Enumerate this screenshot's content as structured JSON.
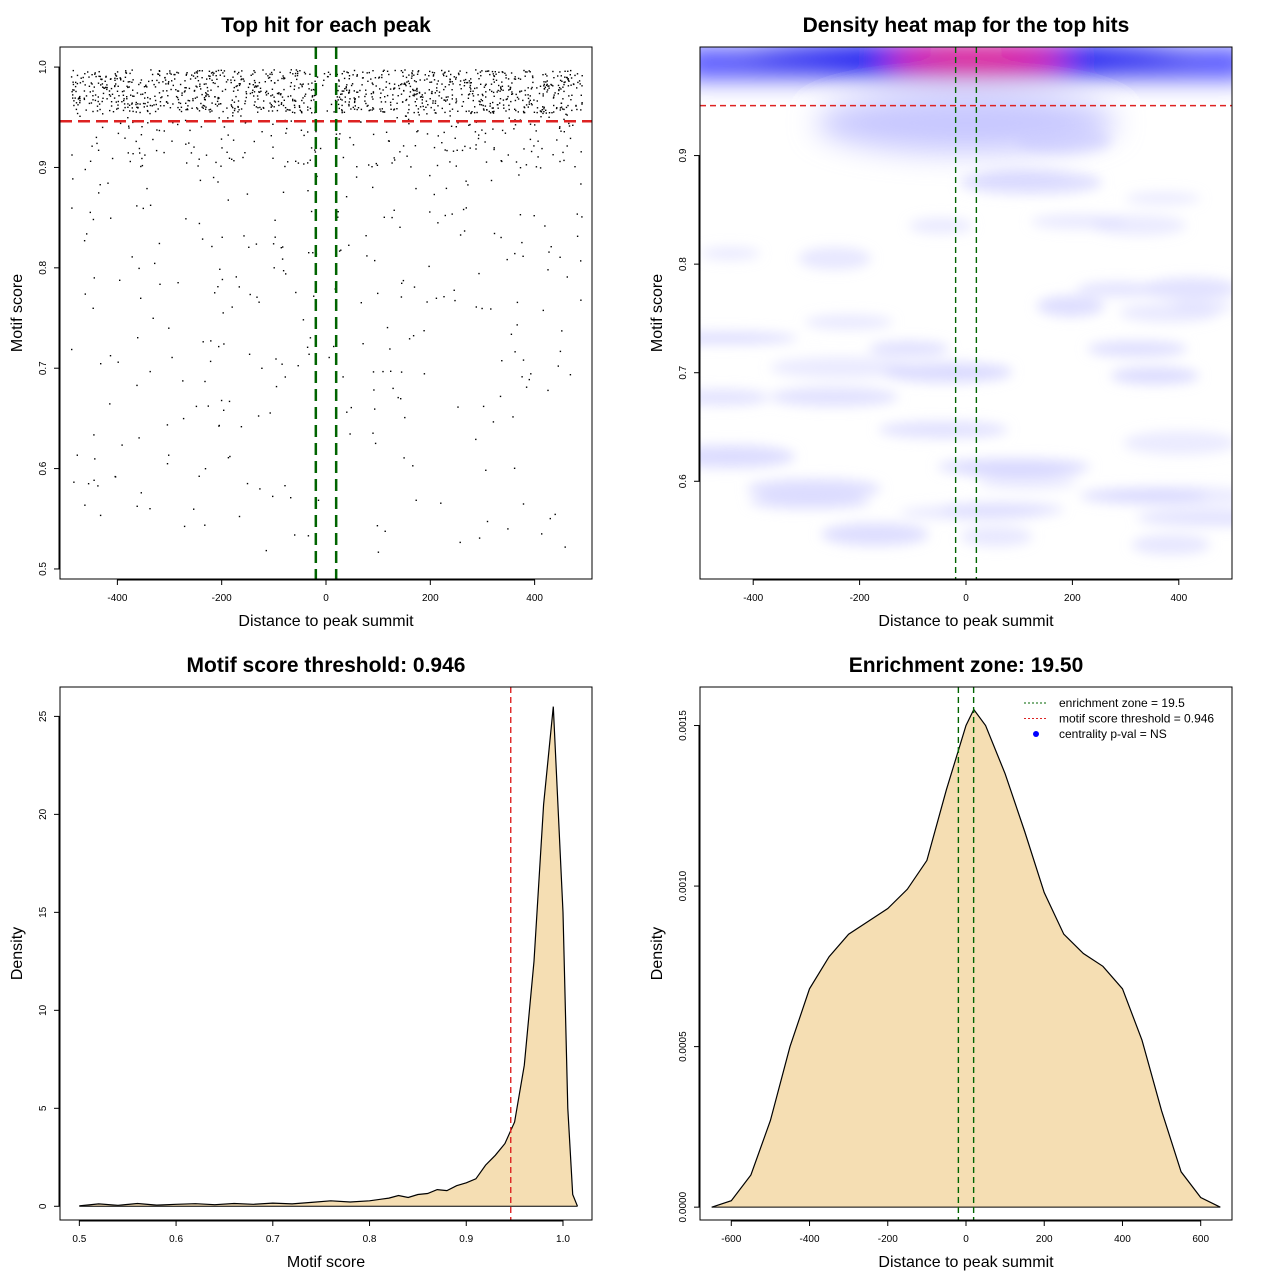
{
  "chart_data": [
    {
      "type": "scatter",
      "title": "Top hit for each peak",
      "xlabel": "Distance to peak summit",
      "ylabel": "Motif score",
      "xlim": [
        -510,
        510
      ],
      "ylim": [
        0.49,
        1.02
      ],
      "xticks": [
        -400,
        -200,
        0,
        200,
        400
      ],
      "yticks": [
        0.5,
        0.6,
        0.7,
        0.8,
        0.9,
        1.0
      ],
      "ytick_labels": [
        "0.5",
        "0.6",
        "0.7",
        "0.8",
        "0.9",
        "1.0"
      ],
      "hlines": [
        {
          "y": 0.946,
          "color": "#dd2222",
          "style": "dashed"
        }
      ],
      "vlines": [
        {
          "x": -19.5,
          "color": "#006400",
          "style": "dashed"
        },
        {
          "x": 19.5,
          "color": "#006400",
          "style": "dashed"
        }
      ],
      "point_color": "#000000"
    },
    {
      "type": "heatmap",
      "title": "Density heat map for the top hits",
      "xlabel": "Distance to peak summit",
      "ylabel": "Motif score",
      "xlim": [
        -500,
        500
      ],
      "ylim": [
        0.51,
        1.0
      ],
      "xticks": [
        -400,
        -200,
        0,
        200,
        400
      ],
      "yticks": [
        0.6,
        0.7,
        0.8,
        0.9
      ],
      "ytick_labels": [
        "0.6",
        "0.7",
        "0.8",
        "0.9"
      ],
      "hlines": [
        {
          "y": 0.946,
          "color": "#dd2222",
          "style": "dashed"
        }
      ],
      "vlines": [
        {
          "x": -19.5,
          "color": "#006400",
          "style": "dashed"
        },
        {
          "x": 19.5,
          "color": "#006400",
          "style": "dashed"
        }
      ],
      "colors": {
        "low": "#ffffff",
        "mid": "#0000ff",
        "high": "#ff0000"
      }
    },
    {
      "type": "area",
      "title": "Motif score threshold: 0.946",
      "xlabel": "Motif score",
      "ylabel": "Density",
      "xlim": [
        0.48,
        1.03
      ],
      "ylim": [
        -0.7,
        26.5
      ],
      "xticks": [
        0.5,
        0.6,
        0.7,
        0.8,
        0.9,
        1.0
      ],
      "xtick_labels": [
        "0.5",
        "0.6",
        "0.7",
        "0.8",
        "0.9",
        "1.0"
      ],
      "yticks": [
        0,
        5,
        10,
        15,
        20,
        25
      ],
      "ytick_labels": [
        "0",
        "5",
        "10",
        "15",
        "20",
        "25"
      ],
      "vlines": [
        {
          "x": 0.946,
          "color": "#dd2222",
          "style": "dashed"
        }
      ],
      "fill": "#f5deb3",
      "x": [
        0.5,
        0.52,
        0.54,
        0.56,
        0.58,
        0.6,
        0.62,
        0.64,
        0.66,
        0.68,
        0.7,
        0.72,
        0.74,
        0.76,
        0.78,
        0.8,
        0.82,
        0.83,
        0.84,
        0.85,
        0.86,
        0.87,
        0.88,
        0.89,
        0.9,
        0.91,
        0.92,
        0.93,
        0.94,
        0.95,
        0.96,
        0.97,
        0.98,
        0.99,
        1.0,
        1.005,
        1.01,
        1.015
      ],
      "y": [
        0.02,
        0.12,
        0.05,
        0.14,
        0.06,
        0.1,
        0.13,
        0.08,
        0.14,
        0.1,
        0.16,
        0.12,
        0.2,
        0.28,
        0.22,
        0.28,
        0.42,
        0.55,
        0.45,
        0.6,
        0.65,
        0.85,
        0.8,
        1.05,
        1.2,
        1.4,
        2.1,
        2.6,
        3.2,
        4.3,
        7.2,
        12.5,
        20.5,
        25.5,
        15,
        5,
        0.6,
        0
      ]
    },
    {
      "type": "area",
      "title": "Enrichment zone: 19.50",
      "xlabel": "Distance to peak summit",
      "ylabel": "Density",
      "xlim": [
        -680,
        680
      ],
      "ylim": [
        -4e-05,
        0.00162
      ],
      "xticks": [
        -600,
        -400,
        -200,
        0,
        200,
        400,
        600
      ],
      "yticks": [
        0,
        0.0005,
        0.001,
        0.0015
      ],
      "ytick_labels": [
        "0.0000",
        "0.0005",
        "0.0010",
        "0.0015"
      ],
      "vlines": [
        {
          "x": -19.5,
          "color": "#006400",
          "style": "dashed"
        },
        {
          "x": 19.5,
          "color": "#006400",
          "style": "dashed"
        }
      ],
      "fill": "#f5deb3",
      "x": [
        -650,
        -600,
        -550,
        -500,
        -450,
        -400,
        -350,
        -300,
        -250,
        -200,
        -150,
        -100,
        -50,
        0,
        20,
        50,
        100,
        150,
        200,
        250,
        300,
        350,
        400,
        450,
        500,
        550,
        600,
        650
      ],
      "y": [
        0,
        2e-05,
        0.0001,
        0.00027,
        0.0005,
        0.00068,
        0.00078,
        0.00085,
        0.00089,
        0.00093,
        0.00099,
        0.00108,
        0.0013,
        0.0015,
        0.00155,
        0.0015,
        0.00135,
        0.00117,
        0.00098,
        0.00085,
        0.00079,
        0.00075,
        0.00068,
        0.00052,
        0.0003,
        0.00011,
        3e-05,
        0
      ],
      "legend": {
        "placement": "top-right",
        "entries": [
          {
            "label": "enrichment zone = 19.5",
            "color": "#006400",
            "symbol": "dotted-line"
          },
          {
            "label": "motif score threshold = 0.946",
            "color": "#dd2222",
            "symbol": "dotted-line"
          },
          {
            "label": "centrality p-val = NS",
            "color": "#0000ff",
            "symbol": "dot"
          }
        ]
      }
    }
  ]
}
